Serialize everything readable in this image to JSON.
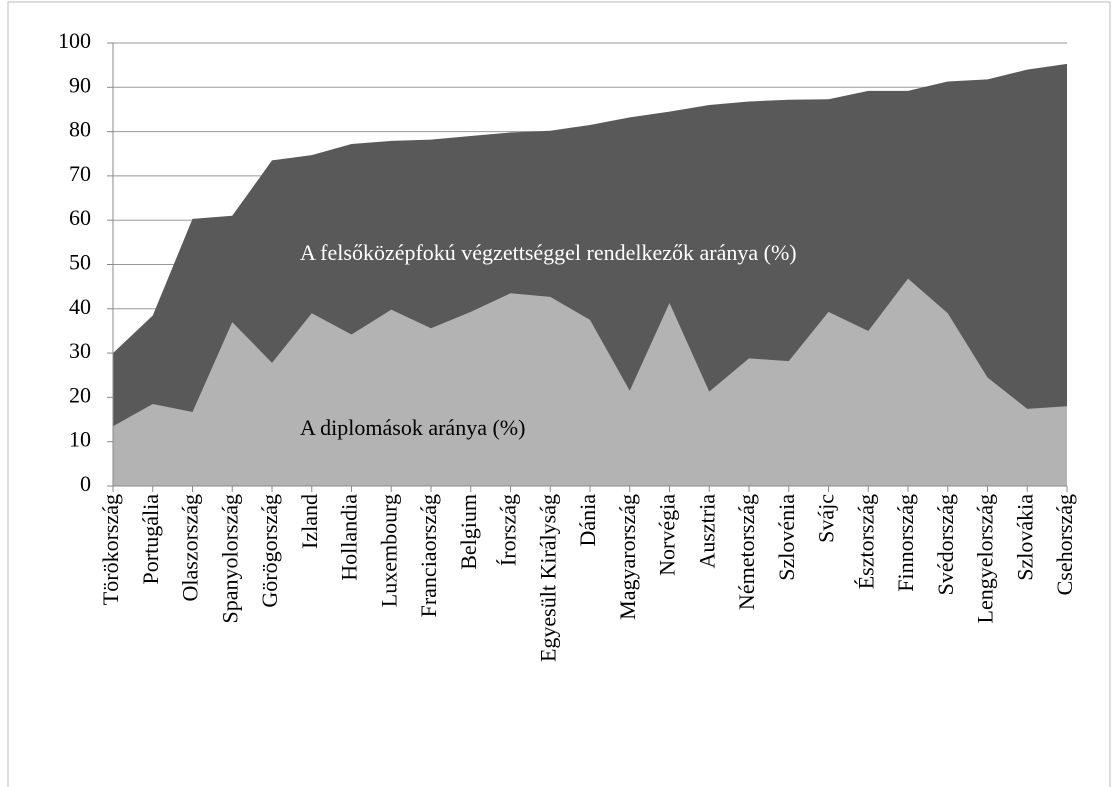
{
  "chart_data": {
    "type": "area",
    "categories": [
      "Törökország",
      "Portugália",
      "Olaszország",
      "Spanyolország",
      "Görögország",
      "Izland",
      "Hollandia",
      "Luxembourg",
      "Franciaország",
      "Belgium",
      "Írország",
      "Egyesült Királyság",
      "Dánia",
      "Magyarország",
      "Norvégia",
      "Ausztria",
      "Németország",
      "Szlovénia",
      "Svájc",
      "Észtország",
      "Finnország",
      "Svédország",
      "Lengyelország",
      "Szlovákia",
      "Csehország"
    ],
    "series": [
      {
        "name": "A felsőközépfokú végzettséggel rendelkezők aránya (%)",
        "color": "#595959",
        "values": [
          30,
          38.5,
          60.3,
          61,
          73.5,
          74.7,
          77.2,
          77.9,
          78.2,
          79,
          79.8,
          80.2,
          81.5,
          83.2,
          84.5,
          86,
          86.8,
          87.2,
          87.3,
          89.2,
          89.2,
          91.3,
          91.8,
          94,
          95.3
        ]
      },
      {
        "name": "A diplomások aránya (%)",
        "color": "#b3b3b3",
        "values": [
          13.5,
          18.5,
          16.7,
          37,
          27.8,
          39,
          34.2,
          39.8,
          35.6,
          39.3,
          43.5,
          42.7,
          37.5,
          21.5,
          41.3,
          21.3,
          28.8,
          28.2,
          39.3,
          35,
          46.8,
          39,
          24.5,
          17.4,
          18
        ]
      }
    ],
    "ylim": [
      0,
      100
    ],
    "yticks": [
      0,
      10,
      20,
      30,
      40,
      50,
      60,
      70,
      80,
      90,
      100
    ],
    "grid": true
  }
}
